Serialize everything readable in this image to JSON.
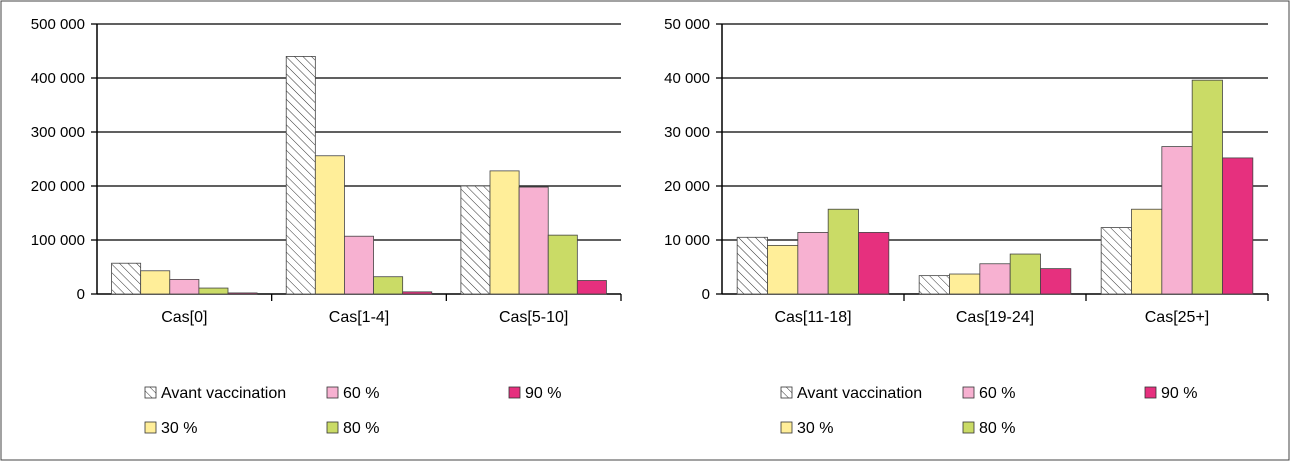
{
  "chart_data": [
    {
      "type": "bar",
      "categories": [
        "Cas[0]",
        "Cas[1-4]",
        "Cas[5-10]"
      ],
      "ylim": [
        0,
        500000
      ],
      "yticks": [
        "0",
        "100 000",
        "200 000",
        "300 000",
        "400 000",
        "500 000"
      ],
      "series": [
        {
          "name": "Avant vaccination",
          "values": [
            57000,
            440000,
            200000
          ]
        },
        {
          "name": "30 %",
          "values": [
            43000,
            256000,
            228000
          ]
        },
        {
          "name": "60 %",
          "values": [
            27000,
            107000,
            198000
          ]
        },
        {
          "name": "80 %",
          "values": [
            11000,
            32000,
            109000
          ]
        },
        {
          "name": "90 %",
          "values": [
            2000,
            4000,
            25000
          ]
        }
      ],
      "legend": "bottom",
      "grid": true
    },
    {
      "type": "bar",
      "categories": [
        "Cas[11-18]",
        "Cas[19-24]",
        "Cas[25+]"
      ],
      "ylim": [
        0,
        50000
      ],
      "yticks": [
        "0",
        "10 000",
        "20 000",
        "30 000",
        "40 000",
        "50 000"
      ],
      "series": [
        {
          "name": "Avant vaccination",
          "values": [
            10500,
            3400,
            12300
          ]
        },
        {
          "name": "30 %",
          "values": [
            9000,
            3700,
            15700
          ]
        },
        {
          "name": "60 %",
          "values": [
            11400,
            5600,
            27300
          ]
        },
        {
          "name": "80 %",
          "values": [
            15700,
            7400,
            39600
          ]
        },
        {
          "name": "90 %",
          "values": [
            11400,
            4700,
            25200
          ]
        }
      ],
      "legend": "bottom",
      "grid": true
    }
  ],
  "colors": {
    "Avant vaccination": "hatched",
    "30 %": "#FFEE99",
    "60 %": "#F7B1D1",
    "80 %": "#CADB66",
    "90 %": "#E6307E"
  }
}
